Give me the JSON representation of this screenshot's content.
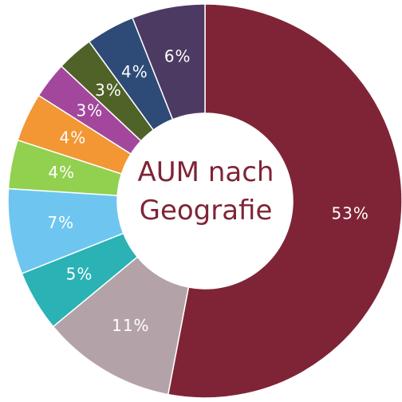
{
  "chart_data": {
    "type": "donut",
    "title": "AUM nach Geografie",
    "values": [
      53,
      11,
      5,
      7,
      4,
      4,
      3,
      3,
      4,
      6
    ],
    "value_labels": [
      "53%",
      "11%",
      "5%",
      "7%",
      "4%",
      "4%",
      "3%",
      "3%",
      "4%",
      "6%"
    ],
    "colors": [
      "#7f2436",
      "#b3a3a9",
      "#2ab2b5",
      "#6ec6f0",
      "#92d050",
      "#f39634",
      "#a3479c",
      "#4f6228",
      "#2e4b78",
      "#4d3a62"
    ]
  }
}
